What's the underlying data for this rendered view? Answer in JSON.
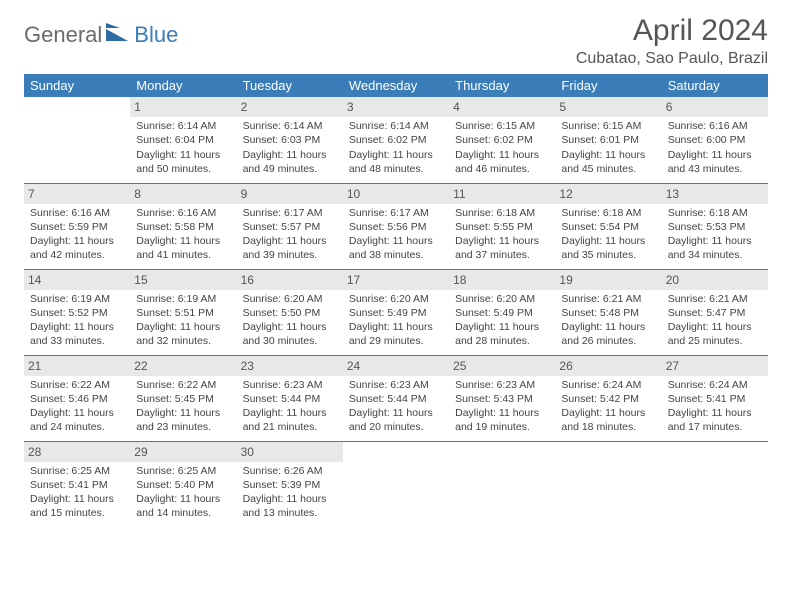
{
  "brand": {
    "part1": "General",
    "part2": "Blue"
  },
  "title": "April 2024",
  "location": "Cubatao, Sao Paulo, Brazil",
  "colors": {
    "header_bg": "#3a7db8",
    "header_text": "#ffffff",
    "daynum_bg": "#e8e8e8",
    "text": "#444444",
    "logo_gray": "#6b6b6b",
    "logo_blue": "#3a7db8"
  },
  "weekdays": [
    "Sunday",
    "Monday",
    "Tuesday",
    "Wednesday",
    "Thursday",
    "Friday",
    "Saturday"
  ],
  "weeks": [
    [
      null,
      {
        "n": "1",
        "sr": "Sunrise: 6:14 AM",
        "ss": "Sunset: 6:04 PM",
        "d1": "Daylight: 11 hours",
        "d2": "and 50 minutes."
      },
      {
        "n": "2",
        "sr": "Sunrise: 6:14 AM",
        "ss": "Sunset: 6:03 PM",
        "d1": "Daylight: 11 hours",
        "d2": "and 49 minutes."
      },
      {
        "n": "3",
        "sr": "Sunrise: 6:14 AM",
        "ss": "Sunset: 6:02 PM",
        "d1": "Daylight: 11 hours",
        "d2": "and 48 minutes."
      },
      {
        "n": "4",
        "sr": "Sunrise: 6:15 AM",
        "ss": "Sunset: 6:02 PM",
        "d1": "Daylight: 11 hours",
        "d2": "and 46 minutes."
      },
      {
        "n": "5",
        "sr": "Sunrise: 6:15 AM",
        "ss": "Sunset: 6:01 PM",
        "d1": "Daylight: 11 hours",
        "d2": "and 45 minutes."
      },
      {
        "n": "6",
        "sr": "Sunrise: 6:16 AM",
        "ss": "Sunset: 6:00 PM",
        "d1": "Daylight: 11 hours",
        "d2": "and 43 minutes."
      }
    ],
    [
      {
        "n": "7",
        "sr": "Sunrise: 6:16 AM",
        "ss": "Sunset: 5:59 PM",
        "d1": "Daylight: 11 hours",
        "d2": "and 42 minutes."
      },
      {
        "n": "8",
        "sr": "Sunrise: 6:16 AM",
        "ss": "Sunset: 5:58 PM",
        "d1": "Daylight: 11 hours",
        "d2": "and 41 minutes."
      },
      {
        "n": "9",
        "sr": "Sunrise: 6:17 AM",
        "ss": "Sunset: 5:57 PM",
        "d1": "Daylight: 11 hours",
        "d2": "and 39 minutes."
      },
      {
        "n": "10",
        "sr": "Sunrise: 6:17 AM",
        "ss": "Sunset: 5:56 PM",
        "d1": "Daylight: 11 hours",
        "d2": "and 38 minutes."
      },
      {
        "n": "11",
        "sr": "Sunrise: 6:18 AM",
        "ss": "Sunset: 5:55 PM",
        "d1": "Daylight: 11 hours",
        "d2": "and 37 minutes."
      },
      {
        "n": "12",
        "sr": "Sunrise: 6:18 AM",
        "ss": "Sunset: 5:54 PM",
        "d1": "Daylight: 11 hours",
        "d2": "and 35 minutes."
      },
      {
        "n": "13",
        "sr": "Sunrise: 6:18 AM",
        "ss": "Sunset: 5:53 PM",
        "d1": "Daylight: 11 hours",
        "d2": "and 34 minutes."
      }
    ],
    [
      {
        "n": "14",
        "sr": "Sunrise: 6:19 AM",
        "ss": "Sunset: 5:52 PM",
        "d1": "Daylight: 11 hours",
        "d2": "and 33 minutes."
      },
      {
        "n": "15",
        "sr": "Sunrise: 6:19 AM",
        "ss": "Sunset: 5:51 PM",
        "d1": "Daylight: 11 hours",
        "d2": "and 32 minutes."
      },
      {
        "n": "16",
        "sr": "Sunrise: 6:20 AM",
        "ss": "Sunset: 5:50 PM",
        "d1": "Daylight: 11 hours",
        "d2": "and 30 minutes."
      },
      {
        "n": "17",
        "sr": "Sunrise: 6:20 AM",
        "ss": "Sunset: 5:49 PM",
        "d1": "Daylight: 11 hours",
        "d2": "and 29 minutes."
      },
      {
        "n": "18",
        "sr": "Sunrise: 6:20 AM",
        "ss": "Sunset: 5:49 PM",
        "d1": "Daylight: 11 hours",
        "d2": "and 28 minutes."
      },
      {
        "n": "19",
        "sr": "Sunrise: 6:21 AM",
        "ss": "Sunset: 5:48 PM",
        "d1": "Daylight: 11 hours",
        "d2": "and 26 minutes."
      },
      {
        "n": "20",
        "sr": "Sunrise: 6:21 AM",
        "ss": "Sunset: 5:47 PM",
        "d1": "Daylight: 11 hours",
        "d2": "and 25 minutes."
      }
    ],
    [
      {
        "n": "21",
        "sr": "Sunrise: 6:22 AM",
        "ss": "Sunset: 5:46 PM",
        "d1": "Daylight: 11 hours",
        "d2": "and 24 minutes."
      },
      {
        "n": "22",
        "sr": "Sunrise: 6:22 AM",
        "ss": "Sunset: 5:45 PM",
        "d1": "Daylight: 11 hours",
        "d2": "and 23 minutes."
      },
      {
        "n": "23",
        "sr": "Sunrise: 6:23 AM",
        "ss": "Sunset: 5:44 PM",
        "d1": "Daylight: 11 hours",
        "d2": "and 21 minutes."
      },
      {
        "n": "24",
        "sr": "Sunrise: 6:23 AM",
        "ss": "Sunset: 5:44 PM",
        "d1": "Daylight: 11 hours",
        "d2": "and 20 minutes."
      },
      {
        "n": "25",
        "sr": "Sunrise: 6:23 AM",
        "ss": "Sunset: 5:43 PM",
        "d1": "Daylight: 11 hours",
        "d2": "and 19 minutes."
      },
      {
        "n": "26",
        "sr": "Sunrise: 6:24 AM",
        "ss": "Sunset: 5:42 PM",
        "d1": "Daylight: 11 hours",
        "d2": "and 18 minutes."
      },
      {
        "n": "27",
        "sr": "Sunrise: 6:24 AM",
        "ss": "Sunset: 5:41 PM",
        "d1": "Daylight: 11 hours",
        "d2": "and 17 minutes."
      }
    ],
    [
      {
        "n": "28",
        "sr": "Sunrise: 6:25 AM",
        "ss": "Sunset: 5:41 PM",
        "d1": "Daylight: 11 hours",
        "d2": "and 15 minutes."
      },
      {
        "n": "29",
        "sr": "Sunrise: 6:25 AM",
        "ss": "Sunset: 5:40 PM",
        "d1": "Daylight: 11 hours",
        "d2": "and 14 minutes."
      },
      {
        "n": "30",
        "sr": "Sunrise: 6:26 AM",
        "ss": "Sunset: 5:39 PM",
        "d1": "Daylight: 11 hours",
        "d2": "and 13 minutes."
      },
      null,
      null,
      null,
      null
    ]
  ]
}
